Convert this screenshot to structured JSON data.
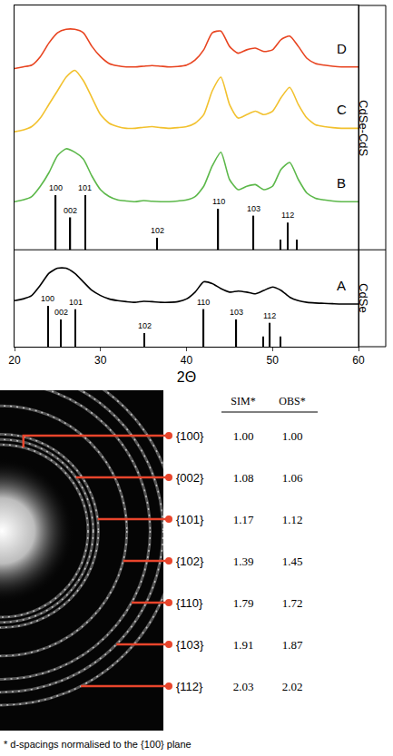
{
  "chart_data": {
    "type": "line",
    "xlabel": "2Θ",
    "x": [
      20,
      21,
      22,
      23,
      24,
      25,
      26,
      27,
      28,
      29,
      30,
      31,
      32,
      33,
      34,
      35,
      36,
      37,
      38,
      39,
      40,
      41,
      42,
      43,
      44,
      45,
      46,
      47,
      48,
      49,
      50,
      51,
      52,
      53,
      54,
      55,
      56,
      57,
      58,
      59,
      60
    ],
    "xlim": [
      20,
      60
    ],
    "xticks": [
      20,
      30,
      40,
      50,
      60
    ],
    "ylim": [
      0,
      100
    ],
    "tick_labels": "x",
    "grid": false,
    "panel_labels": [
      "CdSe-CdS",
      "CdSe"
    ],
    "series": [
      {
        "name": "A",
        "color": "#000000",
        "values": [
          13.5,
          14,
          15,
          18,
          21.5,
          23,
          23,
          21.5,
          19,
          16.5,
          15,
          14,
          13.5,
          13.2,
          13,
          13.3,
          13.2,
          13,
          13,
          13.2,
          14,
          16,
          19,
          18.5,
          17,
          16,
          16.3,
          16,
          15.5,
          16.5,
          17.5,
          16.5,
          14.5,
          13.5,
          13,
          12.8,
          12.7,
          12.6,
          12.5,
          12.5,
          12.5
        ]
      },
      {
        "name": "B",
        "color": "#5cb84a",
        "values": [
          42.5,
          43,
          44,
          47,
          51,
          56,
          58,
          57,
          55,
          50,
          46,
          44,
          43,
          42.7,
          42.5,
          42.8,
          42.6,
          42.5,
          42.5,
          42.7,
          43,
          44,
          47,
          53,
          57,
          49,
          46,
          47,
          47.5,
          46,
          47,
          52,
          54,
          49,
          45,
          43.5,
          43,
          42.7,
          42.5,
          42.5,
          42.5
        ]
      },
      {
        "name": "C",
        "color": "#f2c12e",
        "values": [
          63,
          63.5,
          64.5,
          67,
          71,
          75,
          79,
          81,
          78,
          73,
          68,
          65.5,
          64.5,
          64,
          64,
          64.3,
          64.5,
          64.2,
          64,
          64.2,
          64.5,
          65.5,
          68,
          75,
          79,
          71,
          67,
          68,
          69,
          68,
          69,
          73,
          76,
          71,
          67,
          65,
          64.5,
          64.2,
          64,
          64,
          64
        ]
      },
      {
        "name": "D",
        "color": "#e84420",
        "values": [
          81.5,
          82,
          82.5,
          85,
          89,
          92,
          93,
          93,
          92,
          88,
          85,
          83,
          82.3,
          82,
          82,
          82.2,
          82.4,
          82.2,
          82,
          82.1,
          82.5,
          84,
          87,
          92,
          92.5,
          88,
          86,
          87,
          87.5,
          86.5,
          87,
          90,
          91,
          88,
          84.5,
          83,
          82.5,
          82.2,
          82,
          82,
          82
        ]
      },
      {
        "type": "stick",
        "color": "#000000",
        "base": 0,
        "x": [
          23.9,
          25.4,
          27.1,
          35.1,
          42.0,
          45.8,
          48.9,
          49.7,
          50.9
        ],
        "values": [
          12,
          8,
          11,
          4,
          11,
          8,
          3,
          7,
          3
        ],
        "labels": [
          "100",
          "002",
          "101",
          "102",
          "110",
          "103",
          null,
          "112",
          null
        ]
      },
      {
        "type": "stick",
        "color": "#000000",
        "base": 28.4,
        "x": [
          24.8,
          26.5,
          28.2,
          36.6,
          43.7,
          47.8,
          50.9,
          51.8,
          52.8
        ],
        "values": [
          16,
          9.5,
          16,
          3.5,
          12,
          10,
          3,
          8,
          3
        ],
        "labels": [
          "100",
          "002",
          "101",
          "102",
          "110",
          "103",
          null,
          "112",
          null
        ]
      }
    ]
  },
  "electron_diffraction": {
    "columns": [
      "SIM*",
      "OBS*"
    ],
    "rings": [
      {
        "label": "{100}",
        "sim": "1.00",
        "obs": "1.00"
      },
      {
        "label": "{002}",
        "sim": "1.08",
        "obs": "1.06"
      },
      {
        "label": "{101}",
        "sim": "1.17",
        "obs": "1.12"
      },
      {
        "label": "{102}",
        "sim": "1.39",
        "obs": "1.45"
      },
      {
        "label": "{110}",
        "sim": "1.79",
        "obs": "1.72"
      },
      {
        "label": "{103}",
        "sim": "1.91",
        "obs": "1.87"
      },
      {
        "label": "{112}",
        "sim": "2.03",
        "obs": "2.02"
      }
    ],
    "footnote": "* d-spacings normalised to the {100} plane"
  }
}
